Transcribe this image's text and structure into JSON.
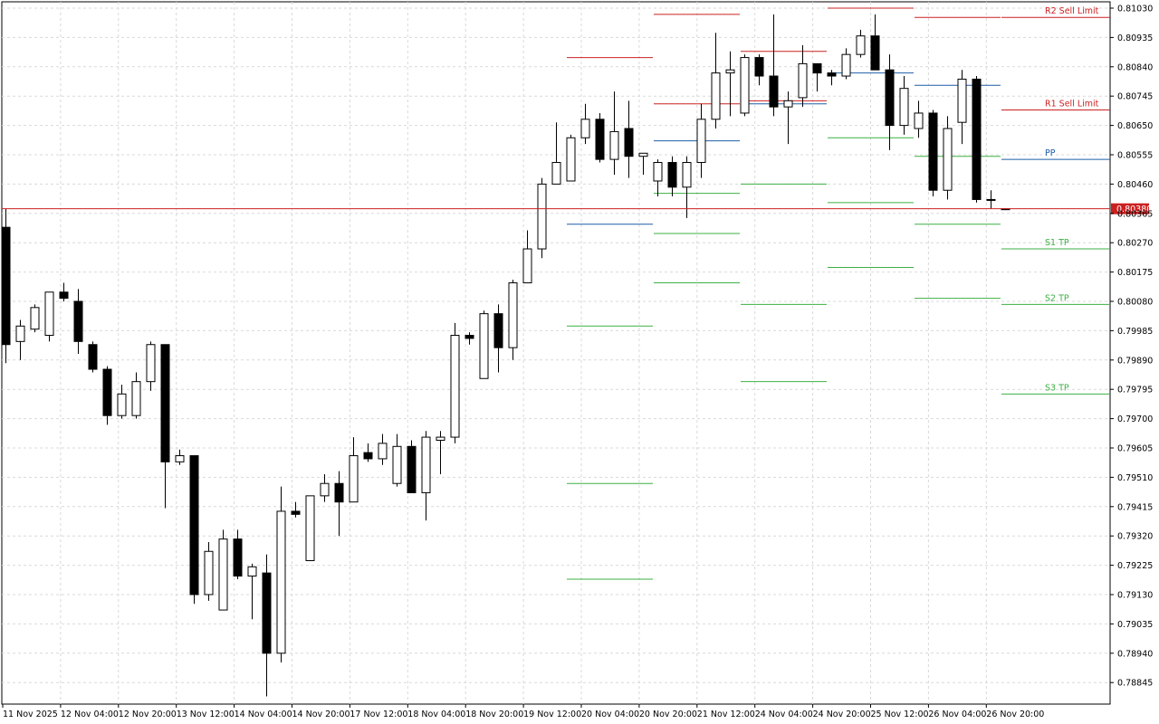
{
  "chart_data": {
    "type": "candlestick",
    "title": "",
    "grid": true,
    "ylim": [
      0.7875,
      0.8105
    ],
    "y_ticks": [
      "0.81030",
      "0.80935",
      "0.80840",
      "0.80745",
      "0.80650",
      "0.80555",
      "0.80460",
      "0.80365",
      "0.80270",
      "0.80175",
      "0.80080",
      "0.79985",
      "0.79890",
      "0.79795",
      "0.79700",
      "0.79605",
      "0.79510",
      "0.79415",
      "0.79320",
      "0.79225",
      "0.79130",
      "0.79035",
      "0.78940",
      "0.78845"
    ],
    "x_ticks": [
      "11 Nov 2025",
      "12 Nov 04:00",
      "12 Nov 20:00",
      "13 Nov 12:00",
      "14 Nov 04:00",
      "14 Nov 20:00",
      "17 Nov 12:00",
      "18 Nov 04:00",
      "18 Nov 20:00",
      "19 Nov 12:00",
      "20 Nov 04:00",
      "20 Nov 20:00",
      "21 Nov 12:00",
      "24 Nov 04:00",
      "24 Nov 20:00",
      "25 Nov 12:00",
      "26 Nov 04:00",
      "26 Nov 20:00"
    ],
    "current_price": "0.80380",
    "candles": [
      {
        "o": 0.8032,
        "h": 0.8038,
        "l": 0.7988,
        "c": 0.7994
      },
      {
        "o": 0.7995,
        "h": 0.8002,
        "l": 0.7989,
        "c": 0.8
      },
      {
        "o": 0.7999,
        "h": 0.8007,
        "l": 0.7998,
        "c": 0.8006
      },
      {
        "o": 0.7997,
        "h": 0.8011,
        "l": 0.7995,
        "c": 0.8011
      },
      {
        "o": 0.8011,
        "h": 0.8014,
        "l": 0.8008,
        "c": 0.8009
      },
      {
        "o": 0.8008,
        "h": 0.8012,
        "l": 0.7991,
        "c": 0.7995
      },
      {
        "o": 0.7994,
        "h": 0.7995,
        "l": 0.7985,
        "c": 0.7986
      },
      {
        "o": 0.7986,
        "h": 0.7987,
        "l": 0.7968,
        "c": 0.7971
      },
      {
        "o": 0.7971,
        "h": 0.7981,
        "l": 0.797,
        "c": 0.7978
      },
      {
        "o": 0.7971,
        "h": 0.7985,
        "l": 0.797,
        "c": 0.7982
      },
      {
        "o": 0.7982,
        "h": 0.7995,
        "l": 0.7979,
        "c": 0.7994
      },
      {
        "o": 0.7994,
        "h": 0.7994,
        "l": 0.7941,
        "c": 0.7956
      },
      {
        "o": 0.7956,
        "h": 0.796,
        "l": 0.7955,
        "c": 0.7958
      },
      {
        "o": 0.7958,
        "h": 0.7958,
        "l": 0.791,
        "c": 0.7913
      },
      {
        "o": 0.7913,
        "h": 0.793,
        "l": 0.7911,
        "c": 0.7927
      },
      {
        "o": 0.7908,
        "h": 0.7934,
        "l": 0.7908,
        "c": 0.7931
      },
      {
        "o": 0.7931,
        "h": 0.7934,
        "l": 0.7918,
        "c": 0.7919
      },
      {
        "o": 0.7919,
        "h": 0.7923,
        "l": 0.7905,
        "c": 0.7922
      },
      {
        "o": 0.792,
        "h": 0.7926,
        "l": 0.788,
        "c": 0.7894
      },
      {
        "o": 0.7894,
        "h": 0.7948,
        "l": 0.7891,
        "c": 0.794
      },
      {
        "o": 0.794,
        "h": 0.7943,
        "l": 0.7938,
        "c": 0.7939
      },
      {
        "o": 0.7924,
        "h": 0.7945,
        "l": 0.7924,
        "c": 0.7945
      },
      {
        "o": 0.7945,
        "h": 0.7952,
        "l": 0.7943,
        "c": 0.7949
      },
      {
        "o": 0.7949,
        "h": 0.7953,
        "l": 0.7932,
        "c": 0.7943
      },
      {
        "o": 0.7943,
        "h": 0.7964,
        "l": 0.7943,
        "c": 0.7958
      },
      {
        "o": 0.7959,
        "h": 0.7962,
        "l": 0.7956,
        "c": 0.7957
      },
      {
        "o": 0.7957,
        "h": 0.7965,
        "l": 0.7955,
        "c": 0.7962
      },
      {
        "o": 0.7949,
        "h": 0.7965,
        "l": 0.7948,
        "c": 0.7961
      },
      {
        "o": 0.7961,
        "h": 0.7963,
        "l": 0.7947,
        "c": 0.7946
      },
      {
        "o": 0.7946,
        "h": 0.7966,
        "l": 0.7937,
        "c": 0.7964
      },
      {
        "o": 0.7963,
        "h": 0.7966,
        "l": 0.7952,
        "c": 0.7964
      },
      {
        "o": 0.7964,
        "h": 0.8001,
        "l": 0.7962,
        "c": 0.7997
      },
      {
        "o": 0.7997,
        "h": 0.7998,
        "l": 0.7994,
        "c": 0.7996
      },
      {
        "o": 0.7983,
        "h": 0.8005,
        "l": 0.7983,
        "c": 0.8004
      },
      {
        "o": 0.8004,
        "h": 0.8007,
        "l": 0.7985,
        "c": 0.7993
      },
      {
        "o": 0.7993,
        "h": 0.8015,
        "l": 0.7989,
        "c": 0.8014
      },
      {
        "o": 0.8014,
        "h": 0.8031,
        "l": 0.8014,
        "c": 0.8025
      },
      {
        "o": 0.8025,
        "h": 0.8048,
        "l": 0.8022,
        "c": 0.8046
      },
      {
        "o": 0.8046,
        "h": 0.8066,
        "l": 0.8046,
        "c": 0.8053
      },
      {
        "o": 0.8047,
        "h": 0.8062,
        "l": 0.8047,
        "c": 0.8061
      },
      {
        "o": 0.8061,
        "h": 0.8072,
        "l": 0.8059,
        "c": 0.8067
      },
      {
        "o": 0.8067,
        "h": 0.8069,
        "l": 0.8053,
        "c": 0.8054
      },
      {
        "o": 0.8054,
        "h": 0.8076,
        "l": 0.8049,
        "c": 0.8063
      },
      {
        "o": 0.8064,
        "h": 0.8073,
        "l": 0.8048,
        "c": 0.8055
      },
      {
        "o": 0.8055,
        "h": 0.8056,
        "l": 0.8049,
        "c": 0.8056
      },
      {
        "o": 0.8047,
        "h": 0.8054,
        "l": 0.8042,
        "c": 0.8053
      },
      {
        "o": 0.8053,
        "h": 0.8055,
        "l": 0.8042,
        "c": 0.8045
      },
      {
        "o": 0.8045,
        "h": 0.8055,
        "l": 0.8035,
        "c": 0.8053
      },
      {
        "o": 0.8053,
        "h": 0.8072,
        "l": 0.8048,
        "c": 0.8067
      },
      {
        "o": 0.8067,
        "h": 0.8095,
        "l": 0.8064,
        "c": 0.8082
      },
      {
        "o": 0.8082,
        "h": 0.8089,
        "l": 0.8068,
        "c": 0.8083
      },
      {
        "o": 0.8069,
        "h": 0.8088,
        "l": 0.8068,
        "c": 0.8087
      },
      {
        "o": 0.8087,
        "h": 0.8088,
        "l": 0.8078,
        "c": 0.8081
      },
      {
        "o": 0.8081,
        "h": 0.8101,
        "l": 0.8068,
        "c": 0.8071
      },
      {
        "o": 0.8071,
        "h": 0.8076,
        "l": 0.8059,
        "c": 0.8073
      },
      {
        "o": 0.8074,
        "h": 0.8091,
        "l": 0.8071,
        "c": 0.8085
      },
      {
        "o": 0.8085,
        "h": 0.8085,
        "l": 0.8076,
        "c": 0.8082
      },
      {
        "o": 0.8082,
        "h": 0.8083,
        "l": 0.8078,
        "c": 0.8081
      },
      {
        "o": 0.8081,
        "h": 0.809,
        "l": 0.808,
        "c": 0.8088
      },
      {
        "o": 0.8088,
        "h": 0.8096,
        "l": 0.8087,
        "c": 0.8094
      },
      {
        "o": 0.8094,
        "h": 0.8101,
        "l": 0.8083,
        "c": 0.8083
      },
      {
        "o": 0.8083,
        "h": 0.8088,
        "l": 0.8057,
        "c": 0.8065
      },
      {
        "o": 0.8065,
        "h": 0.8081,
        "l": 0.8062,
        "c": 0.8077
      },
      {
        "o": 0.8064,
        "h": 0.8073,
        "l": 0.8061,
        "c": 0.8069
      },
      {
        "o": 0.8069,
        "h": 0.807,
        "l": 0.8042,
        "c": 0.8044
      },
      {
        "o": 0.8044,
        "h": 0.8068,
        "l": 0.8041,
        "c": 0.8064
      },
      {
        "o": 0.8066,
        "h": 0.8083,
        "l": 0.8059,
        "c": 0.808
      },
      {
        "o": 0.808,
        "h": 0.8081,
        "l": 0.804,
        "c": 0.8041
      },
      {
        "o": 0.8041,
        "h": 0.8044,
        "l": 0.8038,
        "c": 0.8041
      },
      {
        "o": 0.8038,
        "h": 0.8038,
        "l": 0.8038,
        "c": 0.8038
      }
    ],
    "pivot_segments": [
      {
        "name": "PP",
        "color": "#1f5fa8",
        "segments": [
          [
            0.8033,
            0.8033
          ],
          [
            0.806,
            0.806
          ],
          [
            0.8072,
            0.8072
          ],
          [
            0.8082,
            0.8082
          ],
          [
            0.8078,
            0.8078
          ],
          [
            0.8054,
            0.8054
          ]
        ]
      },
      {
        "name": "R1",
        "color": "#cc2020",
        "segments": [
          [
            0.8087,
            0.8087
          ],
          [
            0.8072,
            0.8072
          ],
          [
            0.8073,
            0.8073
          ],
          [
            0.8103,
            0.8103
          ],
          [
            0.81,
            0.81
          ],
          [
            0.807,
            0.807
          ]
        ]
      },
      {
        "name": "R2",
        "color": "#cc2020",
        "segments": [
          [
            null,
            null
          ],
          [
            0.8101,
            0.8101
          ],
          [
            0.8089,
            0.8089
          ],
          [
            null,
            null
          ],
          [
            null,
            null
          ],
          [
            0.81,
            0.81
          ]
        ]
      },
      {
        "name": "S1",
        "color": "#3cb043",
        "segments": [
          [
            0.8,
            0.8
          ],
          [
            0.8043,
            0.8043
          ],
          [
            0.8046,
            0.8046
          ],
          [
            0.8061,
            0.8061
          ],
          [
            0.8055,
            0.8055
          ],
          [
            0.8025,
            0.8025
          ]
        ]
      },
      {
        "name": "S2",
        "color": "#3cb043",
        "segments": [
          [
            0.7949,
            0.7949
          ],
          [
            0.803,
            0.803
          ],
          [
            0.8007,
            0.8007
          ],
          [
            0.804,
            0.804
          ],
          [
            0.8033,
            0.8033
          ],
          [
            0.8007,
            0.8007
          ]
        ]
      },
      {
        "name": "S3",
        "color": "#3cb043",
        "segments": [
          [
            0.7918,
            0.7918
          ],
          [
            0.8014,
            0.8014
          ],
          [
            0.7982,
            0.7982
          ],
          [
            0.8019,
            0.8019
          ],
          [
            0.8009,
            0.8009
          ],
          [
            0.7978,
            0.7978
          ]
        ]
      }
    ],
    "labels": [
      {
        "text": "R2 Sell Limit",
        "color": "#cc2020",
        "y": 0.81
      },
      {
        "text": "R1 Sell Limit",
        "color": "#cc2020",
        "y": 0.807
      },
      {
        "text": "PP",
        "color": "#1f5fa8",
        "y": 0.8054
      },
      {
        "text": "S1 TP",
        "color": "#3cb043",
        "y": 0.8025
      },
      {
        "text": "S2 TP",
        "color": "#3cb043",
        "y": 0.8007
      },
      {
        "text": "S3 TP",
        "color": "#3cb043",
        "y": 0.7978
      }
    ],
    "colors": {
      "bull_body": "#ffffff",
      "bear_body": "#000000",
      "candle_outline": "#000000",
      "current_price_line": "#cc2020",
      "current_price_badge": "#cc2020",
      "grid": "#d9d9d9"
    }
  }
}
